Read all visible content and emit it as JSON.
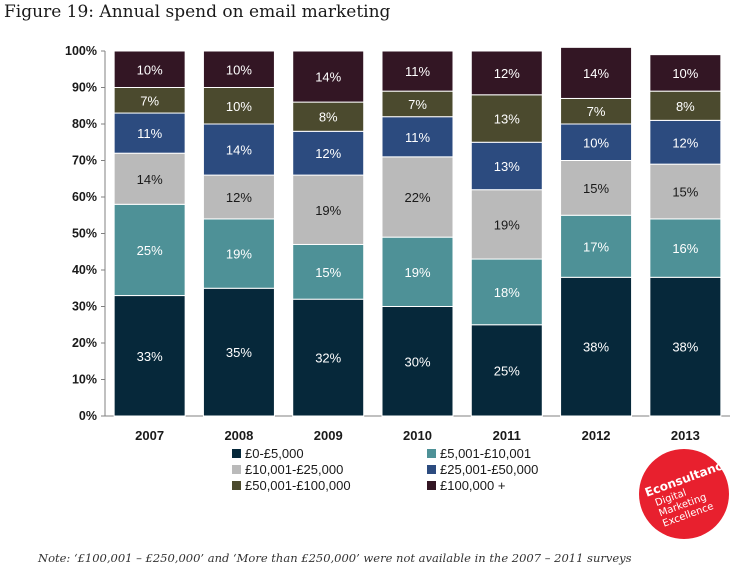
{
  "figure_title": "Figure 19: Annual spend on email marketing",
  "note": "Note: ‘£100,001 – £250,000’ and ‘More than £250,000’ were not available in the 2007 – 2011 surveys",
  "logo": {
    "name": "Econsultancy",
    "tagline_lines": [
      "Digital",
      "Marketing",
      "Excellence"
    ],
    "color": "#e8202e"
  },
  "chart_data": {
    "type": "bar",
    "stacked": true,
    "categories": [
      "2007",
      "2008",
      "2009",
      "2010",
      "2011",
      "2012",
      "2013"
    ],
    "ylim": [
      0,
      100
    ],
    "yticks": [
      "0%",
      "10%",
      "20%",
      "30%",
      "40%",
      "50%",
      "60%",
      "70%",
      "80%",
      "90%",
      "100%"
    ],
    "legend_position": "bottom",
    "series": [
      {
        "name": "£0-£5,000",
        "color": "#06283a",
        "label_color": "#ffffff",
        "values": [
          33,
          35,
          32,
          30,
          25,
          38,
          38
        ]
      },
      {
        "name": "£5,001-£10,001",
        "color": "#4e9197",
        "label_color": "#ffffff",
        "values": [
          25,
          19,
          15,
          19,
          18,
          17,
          16
        ]
      },
      {
        "name": "£10,001-£25,000",
        "color": "#bababa",
        "label_color": "#1a1a1a",
        "values": [
          14,
          12,
          19,
          22,
          19,
          15,
          15
        ]
      },
      {
        "name": "£25,001-£50,000",
        "color": "#2c4b7f",
        "label_color": "#ffffff",
        "values": [
          11,
          14,
          12,
          11,
          13,
          10,
          12
        ]
      },
      {
        "name": "£50,001-£100,000",
        "color": "#4b4a2e",
        "label_color": "#ffffff",
        "values": [
          7,
          10,
          8,
          7,
          13,
          7,
          8
        ]
      },
      {
        "name": "£100,000 +",
        "color": "#331624",
        "label_color": "#ffffff",
        "values": [
          10,
          10,
          14,
          11,
          12,
          14,
          10
        ]
      }
    ]
  }
}
